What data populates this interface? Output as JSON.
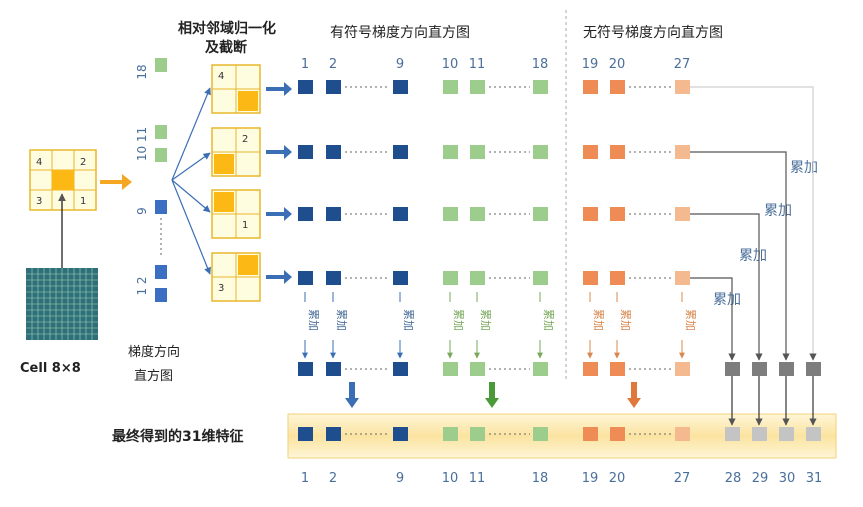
{
  "titles": {
    "normalize": "相对邻域归一化",
    "normalize2": "及截断",
    "signed": "有符号梯度方向直方图",
    "unsigned": "无符号梯度方向直方图"
  },
  "cell_label": "Cell 8×8",
  "hist_label_1": "梯度方向",
  "hist_label_2": "直方图",
  "final_label": "最终得到的31维特征",
  "accumulate": "累加",
  "cell_numbers": [
    "4",
    "2",
    "3",
    "1"
  ],
  "vertical_labels": [
    "18",
    "10 11",
    "9",
    "1 2"
  ],
  "top_index": [
    "1",
    "2",
    "9",
    "10",
    "11",
    "18",
    "19",
    "20",
    "27"
  ],
  "bottom_index": [
    "1",
    "2",
    "9",
    "10",
    "11",
    "18",
    "19",
    "20",
    "27",
    "28",
    "29",
    "30",
    "31"
  ],
  "colors": {
    "blue": "#1f4e8f",
    "blue_light": "#3a6fc4",
    "green": "#9ccd8c",
    "orange": "#ef8c55",
    "orange_light": "#f4b98f",
    "gray": "#8c8c8c",
    "gray_light": "#c4c4c4",
    "yellow": "#fcb814",
    "band": "#fbe7a6",
    "index_text": "#4a6f9a",
    "arrow_blue": "#3b6fb5"
  }
}
